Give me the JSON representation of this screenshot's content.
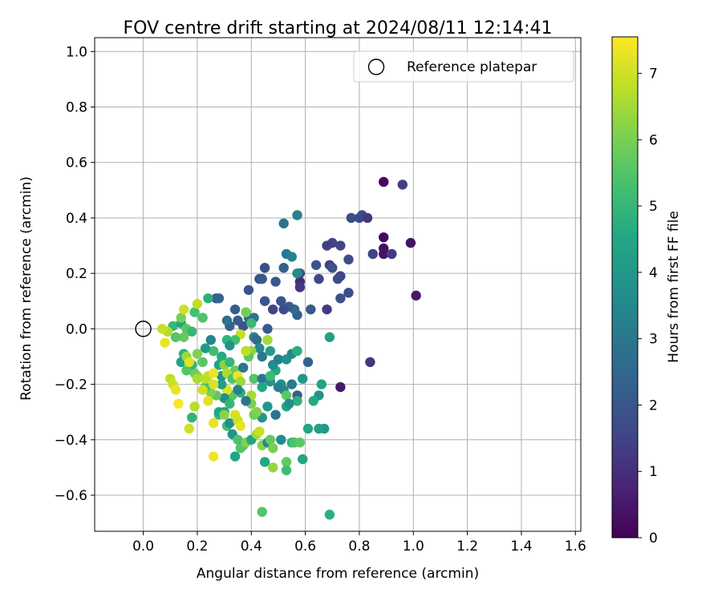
{
  "chart_data": {
    "type": "scatter",
    "title": "FOV centre drift starting at 2024/08/11 12:14:41",
    "xlabel": "Angular distance from reference (arcmin)",
    "ylabel": "Rotation from reference (arcmin)",
    "xlim": [
      -0.18,
      1.62
    ],
    "ylim": [
      -0.73,
      1.05
    ],
    "xticks": [
      0.0,
      0.2,
      0.4,
      0.6,
      0.8,
      1.0,
      1.2,
      1.4,
      1.6
    ],
    "xtick_labels": [
      "0.0",
      "0.2",
      "0.4",
      "0.6",
      "0.8",
      "1.0",
      "1.2",
      "1.4",
      "1.6"
    ],
    "yticks": [
      -0.6,
      -0.4,
      -0.2,
      0.0,
      0.2,
      0.4,
      0.6,
      0.8,
      1.0
    ],
    "ytick_labels": [
      "−0.6",
      "−0.4",
      "−0.2",
      "0.0",
      "0.2",
      "0.4",
      "0.6",
      "0.8",
      "1.0"
    ],
    "grid": true,
    "legend": {
      "position": "top-right",
      "entries": [
        "Reference platepar"
      ]
    },
    "reference_point": {
      "name": "Reference platepar",
      "x": 0.0,
      "y": 0.0
    },
    "colorbar": {
      "label": "Hours from first FF file",
      "range": [
        0,
        7.55
      ],
      "ticks": [
        0,
        1,
        2,
        3,
        4,
        5,
        6,
        7
      ],
      "tick_labels": [
        "0",
        "1",
        "2",
        "3",
        "4",
        "5",
        "6",
        "7"
      ],
      "colormap": "viridis",
      "colors": [
        "#440154",
        "#482475",
        "#414487",
        "#355f8d",
        "#2a788e",
        "#21918c",
        "#22a884",
        "#44bf70",
        "#7ad151",
        "#bddf26",
        "#fde725"
      ]
    },
    "series": [
      {
        "points": [
          [
            0.89,
            0.53,
            0.2
          ],
          [
            0.96,
            0.52,
            1.4
          ],
          [
            0.89,
            0.33,
            0.1
          ],
          [
            0.89,
            0.29,
            0.3
          ],
          [
            0.89,
            0.27,
            0.4
          ],
          [
            0.92,
            0.27,
            1.3
          ],
          [
            0.99,
            0.31,
            0.4
          ],
          [
            1.01,
            0.12,
            0.5
          ],
          [
            0.84,
            -0.12,
            1.2
          ],
          [
            0.73,
            -0.21,
            0.5
          ],
          [
            0.81,
            0.41,
            1.6
          ],
          [
            0.8,
            0.4,
            1.7
          ],
          [
            0.77,
            0.4,
            1.8
          ],
          [
            0.83,
            0.4,
            1.2
          ],
          [
            0.7,
            0.31,
            1.5
          ],
          [
            0.73,
            0.3,
            1.6
          ],
          [
            0.68,
            0.3,
            1.4
          ],
          [
            0.85,
            0.27,
            1.5
          ],
          [
            0.76,
            0.25,
            1.8
          ],
          [
            0.69,
            0.23,
            1.4
          ],
          [
            0.7,
            0.22,
            1.9
          ],
          [
            0.64,
            0.23,
            2.0
          ],
          [
            0.58,
            0.2,
            1.7
          ],
          [
            0.58,
            0.17,
            0.9
          ],
          [
            0.58,
            0.15,
            1.2
          ],
          [
            0.65,
            0.18,
            1.6
          ],
          [
            0.73,
            0.19,
            1.5
          ],
          [
            0.72,
            0.18,
            1.7
          ],
          [
            0.76,
            0.13,
            1.8
          ],
          [
            0.73,
            0.11,
            1.9
          ],
          [
            0.68,
            0.07,
            1.3
          ],
          [
            0.62,
            0.07,
            2.1
          ],
          [
            0.57,
            0.05,
            2.3
          ],
          [
            0.56,
            0.07,
            2.6
          ],
          [
            0.54,
            0.08,
            2.2
          ],
          [
            0.52,
            0.07,
            1.7
          ],
          [
            0.48,
            0.07,
            1.5
          ],
          [
            0.51,
            0.1,
            1.9
          ],
          [
            0.45,
            0.1,
            2.0
          ],
          [
            0.49,
            0.17,
            2.1
          ],
          [
            0.52,
            0.22,
            2.4
          ],
          [
            0.53,
            0.27,
            3.0
          ],
          [
            0.55,
            0.26,
            3.3
          ],
          [
            0.57,
            0.2,
            3.6
          ],
          [
            0.57,
            0.41,
            3.2
          ],
          [
            0.52,
            0.38,
            2.9
          ],
          [
            0.45,
            0.22,
            1.8
          ],
          [
            0.43,
            0.18,
            1.9
          ],
          [
            0.44,
            0.18,
            2.1
          ],
          [
            0.39,
            0.14,
            2.0
          ],
          [
            0.34,
            0.07,
            2.3
          ],
          [
            0.39,
            0.04,
            2.7
          ],
          [
            0.41,
            0.04,
            2.9
          ],
          [
            0.37,
            0.01,
            1.9
          ],
          [
            0.35,
            0.03,
            2.2
          ],
          [
            0.32,
            0.01,
            2.4
          ],
          [
            0.31,
            0.03,
            2.8
          ],
          [
            0.27,
            0.11,
            2.0
          ],
          [
            0.28,
            0.11,
            2.5
          ],
          [
            0.24,
            0.11,
            4.8
          ],
          [
            0.38,
            0.06,
            5.9
          ],
          [
            0.4,
            0.02,
            5.1
          ],
          [
            0.46,
            0.0,
            2.1
          ],
          [
            0.41,
            -0.03,
            3.3
          ],
          [
            0.42,
            -0.04,
            2.6
          ],
          [
            0.43,
            -0.07,
            3.6
          ],
          [
            0.44,
            -0.1,
            3.0
          ],
          [
            0.4,
            -0.08,
            6.3
          ],
          [
            0.39,
            -0.1,
            5.6
          ],
          [
            0.38,
            -0.08,
            6.8
          ],
          [
            0.36,
            -0.02,
            6.9
          ],
          [
            0.34,
            -0.04,
            5.3
          ],
          [
            0.31,
            -0.04,
            4.9
          ],
          [
            0.32,
            -0.06,
            3.9
          ],
          [
            0.29,
            -0.1,
            4.6
          ],
          [
            0.26,
            -0.08,
            5.2
          ],
          [
            0.25,
            -0.04,
            3.4
          ],
          [
            0.23,
            -0.07,
            4.1
          ],
          [
            0.28,
            -0.13,
            4.4
          ],
          [
            0.3,
            -0.13,
            6.2
          ],
          [
            0.32,
            -0.12,
            5.0
          ],
          [
            0.34,
            -0.15,
            5.8
          ],
          [
            0.37,
            -0.14,
            3.0
          ],
          [
            0.41,
            -0.18,
            5.5
          ],
          [
            0.44,
            -0.18,
            2.9
          ],
          [
            0.44,
            -0.21,
            4.5
          ],
          [
            0.47,
            -0.19,
            3.8
          ],
          [
            0.49,
            -0.15,
            4.6
          ],
          [
            0.51,
            -0.2,
            3.9
          ],
          [
            0.52,
            -0.22,
            3.6
          ],
          [
            0.5,
            -0.21,
            3.3
          ],
          [
            0.47,
            -0.17,
            5.1
          ],
          [
            0.48,
            -0.13,
            3.6
          ],
          [
            0.5,
            -0.11,
            3.2
          ],
          [
            0.47,
            -0.08,
            4.2
          ],
          [
            0.46,
            -0.04,
            6.5
          ],
          [
            0.53,
            -0.11,
            3.8
          ],
          [
            0.55,
            -0.09,
            3.5
          ],
          [
            0.57,
            -0.08,
            4.7
          ],
          [
            0.55,
            -0.2,
            3.1
          ],
          [
            0.57,
            -0.24,
            2.2
          ],
          [
            0.59,
            -0.18,
            4.0
          ],
          [
            0.61,
            -0.12,
            2.4
          ],
          [
            0.66,
            -0.2,
            4.4
          ],
          [
            0.69,
            -0.03,
            4.2
          ],
          [
            0.65,
            -0.24,
            3.9
          ],
          [
            0.63,
            -0.26,
            4.6
          ],
          [
            0.57,
            -0.26,
            4.8
          ],
          [
            0.53,
            -0.24,
            5.6
          ],
          [
            0.53,
            -0.28,
            4.5
          ],
          [
            0.54,
            -0.27,
            3.7
          ],
          [
            0.49,
            -0.31,
            2.9
          ],
          [
            0.46,
            -0.28,
            4.0
          ],
          [
            0.44,
            -0.32,
            3.9
          ],
          [
            0.41,
            -0.31,
            5.9
          ],
          [
            0.42,
            -0.3,
            6.1
          ],
          [
            0.4,
            -0.27,
            6.0
          ],
          [
            0.4,
            -0.24,
            6.5
          ],
          [
            0.38,
            -0.26,
            3.0
          ],
          [
            0.36,
            -0.23,
            4.7
          ],
          [
            0.33,
            -0.24,
            5.6
          ],
          [
            0.31,
            -0.22,
            7.2
          ],
          [
            0.3,
            -0.25,
            3.7
          ],
          [
            0.29,
            -0.2,
            4.2
          ],
          [
            0.29,
            -0.17,
            3.9
          ],
          [
            0.31,
            -0.16,
            6.6
          ],
          [
            0.33,
            -0.18,
            5.4
          ],
          [
            0.35,
            -0.17,
            7.4
          ],
          [
            0.36,
            -0.19,
            6.4
          ],
          [
            0.35,
            -0.22,
            3.3
          ],
          [
            0.32,
            -0.27,
            5.0
          ],
          [
            0.3,
            -0.3,
            4.3
          ],
          [
            0.28,
            -0.31,
            5.2
          ],
          [
            0.27,
            -0.24,
            5.7
          ],
          [
            0.25,
            -0.23,
            6.1
          ],
          [
            0.23,
            -0.21,
            5.3
          ],
          [
            0.22,
            -0.22,
            7.0
          ],
          [
            0.24,
            -0.17,
            6.9
          ],
          [
            0.26,
            -0.16,
            7.4
          ],
          [
            0.26,
            -0.2,
            7.1
          ],
          [
            0.2,
            -0.17,
            6.2
          ],
          [
            0.19,
            -0.16,
            5.9
          ],
          [
            0.18,
            -0.13,
            4.9
          ],
          [
            0.16,
            -0.15,
            5.5
          ],
          [
            0.15,
            -0.11,
            5.1
          ],
          [
            0.15,
            -0.09,
            4.8
          ],
          [
            0.14,
            -0.12,
            4.4
          ],
          [
            0.16,
            -0.1,
            6.4
          ],
          [
            0.17,
            -0.12,
            7.2
          ],
          [
            0.2,
            -0.09,
            6.1
          ],
          [
            0.22,
            -0.12,
            5.6
          ],
          [
            0.15,
            -0.03,
            5.8
          ],
          [
            0.12,
            -0.03,
            5.5
          ],
          [
            0.11,
            0.01,
            5.0
          ],
          [
            0.14,
            0.02,
            4.5
          ],
          [
            0.16,
            0.0,
            5.6
          ],
          [
            0.18,
            -0.01,
            5.0
          ],
          [
            0.14,
            0.04,
            6.0
          ],
          [
            0.15,
            0.07,
            7.0
          ],
          [
            0.19,
            0.06,
            5.3
          ],
          [
            0.2,
            0.09,
            6.8
          ],
          [
            0.22,
            0.04,
            5.4
          ],
          [
            0.09,
            -0.01,
            6.7
          ],
          [
            0.07,
            0.0,
            6.9
          ],
          [
            0.08,
            -0.05,
            7.3
          ],
          [
            0.1,
            -0.18,
            6.8
          ],
          [
            0.11,
            -0.2,
            7.0
          ],
          [
            0.12,
            -0.22,
            7.3
          ],
          [
            0.13,
            -0.27,
            7.5
          ],
          [
            0.19,
            -0.28,
            6.7
          ],
          [
            0.18,
            -0.32,
            4.9
          ],
          [
            0.17,
            -0.36,
            7.0
          ],
          [
            0.2,
            -0.18,
            6.6
          ],
          [
            0.23,
            -0.18,
            6.8
          ],
          [
            0.24,
            -0.26,
            7.2
          ],
          [
            0.26,
            -0.34,
            7.3
          ],
          [
            0.28,
            -0.3,
            4.5
          ],
          [
            0.3,
            -0.31,
            6.2
          ],
          [
            0.31,
            -0.35,
            5.2
          ],
          [
            0.32,
            -0.34,
            3.8
          ],
          [
            0.33,
            -0.38,
            3.9
          ],
          [
            0.34,
            -0.31,
            7.1
          ],
          [
            0.35,
            -0.33,
            7.0
          ],
          [
            0.36,
            -0.35,
            7.3
          ],
          [
            0.35,
            -0.4,
            5.4
          ],
          [
            0.37,
            -0.42,
            4.7
          ],
          [
            0.36,
            -0.43,
            5.5
          ],
          [
            0.38,
            -0.41,
            6.1
          ],
          [
            0.34,
            -0.46,
            4.4
          ],
          [
            0.4,
            -0.4,
            4.4
          ],
          [
            0.42,
            -0.38,
            6.5
          ],
          [
            0.43,
            -0.37,
            6.9
          ],
          [
            0.44,
            -0.42,
            6.2
          ],
          [
            0.45,
            -0.48,
            4.4
          ],
          [
            0.46,
            -0.41,
            3.4
          ],
          [
            0.47,
            -0.4,
            5.7
          ],
          [
            0.48,
            -0.43,
            6.0
          ],
          [
            0.48,
            -0.5,
            6.3
          ],
          [
            0.51,
            -0.4,
            3.6
          ],
          [
            0.53,
            -0.48,
            5.7
          ],
          [
            0.53,
            -0.51,
            5.2
          ],
          [
            0.55,
            -0.41,
            4.9
          ],
          [
            0.56,
            -0.41,
            5.4
          ],
          [
            0.58,
            -0.41,
            5.6
          ],
          [
            0.59,
            -0.47,
            4.4
          ],
          [
            0.61,
            -0.36,
            4.4
          ],
          [
            0.67,
            -0.36,
            4.0
          ],
          [
            0.65,
            -0.36,
            4.2
          ],
          [
            0.26,
            -0.46,
            7.4
          ],
          [
            0.44,
            -0.66,
            5.5
          ],
          [
            0.69,
            -0.67,
            4.8
          ]
        ]
      }
    ]
  }
}
